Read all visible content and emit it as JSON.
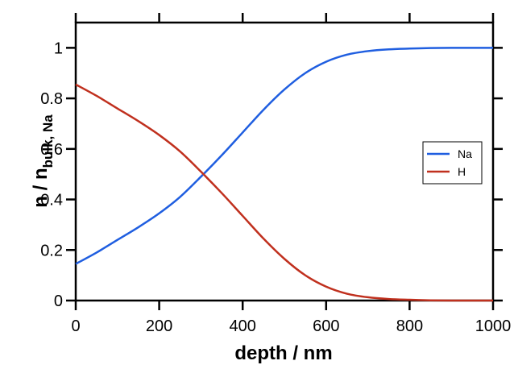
{
  "chart_data": {
    "type": "line",
    "title": "",
    "xlabel": "depth / nm",
    "ylabel": {
      "main": "n / n",
      "subscript": "bulk, Na"
    },
    "xlim": [
      0,
      1000
    ],
    "ylim": [
      0,
      1.1
    ],
    "xticks": [
      0,
      200,
      400,
      600,
      800,
      1000
    ],
    "yticks": [
      0,
      0.2,
      0.4,
      0.6,
      0.8,
      1
    ],
    "xtick_labels": [
      "0",
      "200",
      "400",
      "600",
      "800",
      "1000"
    ],
    "ytick_labels": [
      "0",
      "0.2",
      "0.4",
      "0.6",
      "0.8",
      "1"
    ],
    "grid": false,
    "legend_position": "right",
    "series": [
      {
        "name": "Na",
        "color": "#1f5ee0",
        "x": [
          0,
          50,
          100,
          150,
          200,
          250,
          300,
          350,
          400,
          450,
          500,
          550,
          600,
          650,
          700,
          750,
          800,
          850,
          900,
          950,
          1000
        ],
        "values": [
          0.145,
          0.19,
          0.24,
          0.29,
          0.345,
          0.41,
          0.49,
          0.575,
          0.665,
          0.755,
          0.835,
          0.9,
          0.945,
          0.973,
          0.987,
          0.994,
          0.997,
          0.999,
          1.0,
          1.0,
          1.0
        ]
      },
      {
        "name": "H",
        "color": "#c0301e",
        "x": [
          0,
          50,
          100,
          150,
          200,
          250,
          300,
          350,
          400,
          450,
          500,
          550,
          600,
          650,
          700,
          750,
          800,
          850,
          900,
          950,
          1000
        ],
        "values": [
          0.855,
          0.81,
          0.76,
          0.71,
          0.655,
          0.59,
          0.51,
          0.425,
          0.335,
          0.245,
          0.165,
          0.1,
          0.055,
          0.027,
          0.013,
          0.006,
          0.003,
          0.001,
          0.0,
          0.0,
          0.0
        ]
      }
    ]
  }
}
